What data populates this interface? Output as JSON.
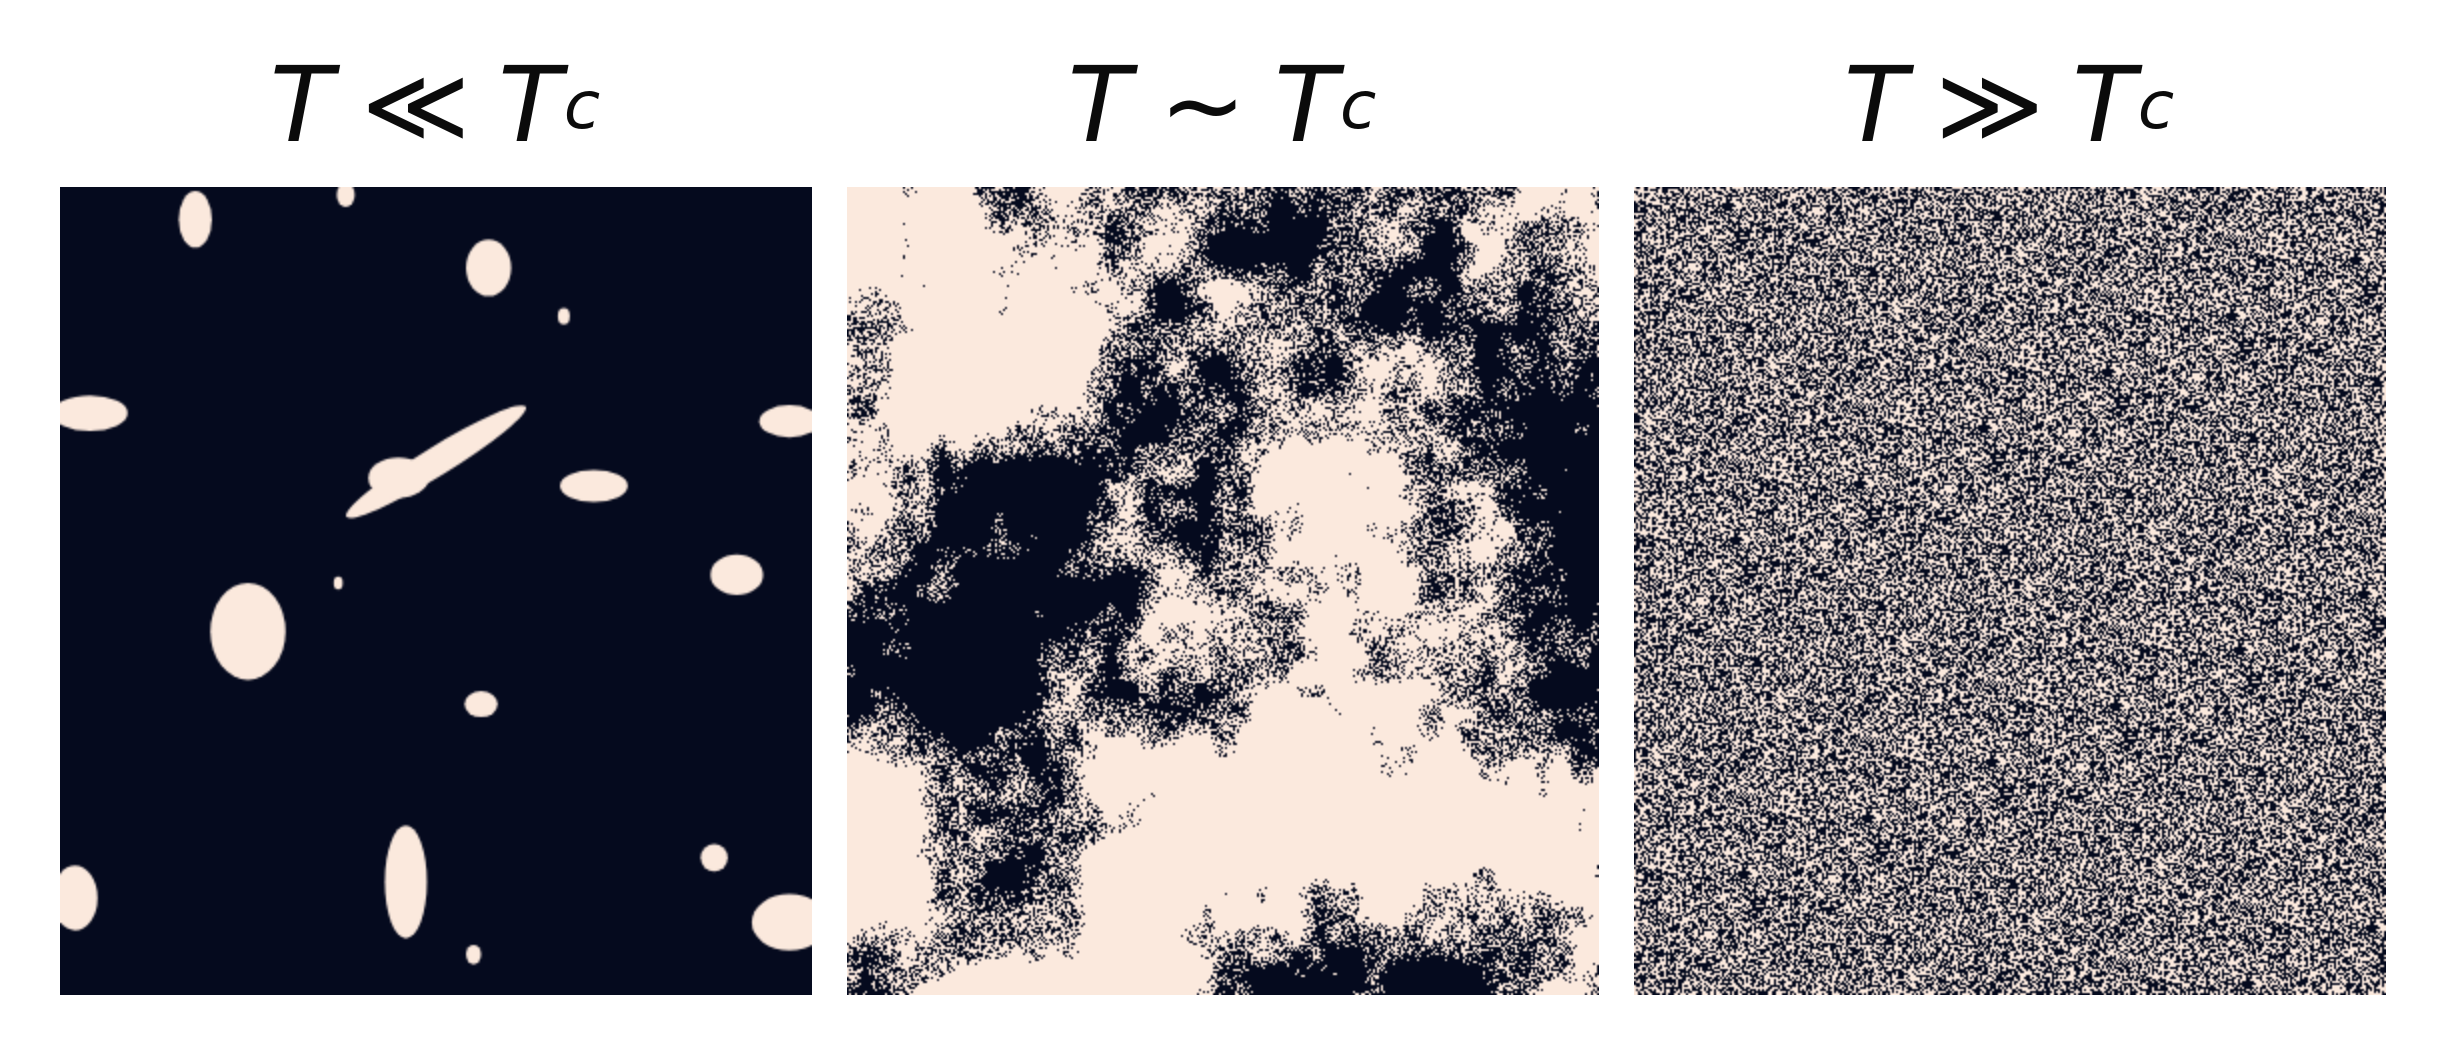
{
  "colors": {
    "dark": "#050a1e",
    "light": "#fbe9dd"
  },
  "panels": [
    {
      "id": "low",
      "title_left": "T",
      "title_relation": "≪",
      "title_right": "T",
      "title_sub": "c"
    },
    {
      "id": "critical",
      "title_left": "T",
      "title_relation": "~",
      "title_right": "T",
      "title_sub": "c"
    },
    {
      "id": "high",
      "title_left": "T",
      "title_relation": "≫",
      "title_right": "T",
      "title_sub": "c"
    }
  ]
}
